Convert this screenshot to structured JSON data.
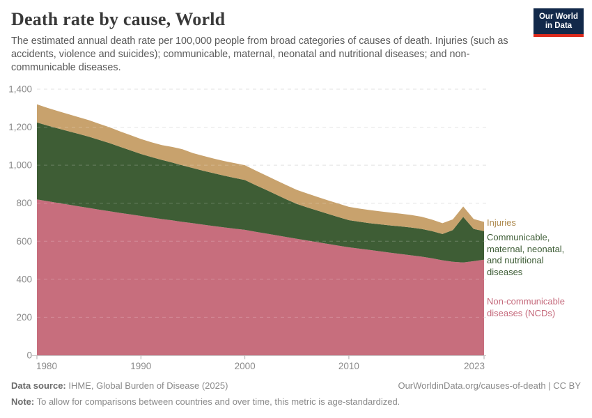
{
  "header": {
    "title": "Death rate by cause, World",
    "subtitle": "The estimated annual death rate per 100,000 people from broad categories of causes of death. Injuries (such as accidents, violence and suicides); communicable, maternal, neonatal and nutritional diseases; and non-communicable diseases."
  },
  "logo": {
    "line1": "Our World",
    "line2": "in Data"
  },
  "chart_data": {
    "type": "area",
    "stacked": true,
    "title": "Death rate by cause, World",
    "xlabel": "",
    "ylabel": "Estimated annual death rate per 100,000 people",
    "ylim": [
      0,
      1400
    ],
    "grid": "dashed",
    "legend_position": "right",
    "x": [
      1980,
      1981,
      1982,
      1983,
      1984,
      1985,
      1986,
      1987,
      1988,
      1989,
      1990,
      1991,
      1992,
      1993,
      1994,
      1995,
      1996,
      1997,
      1998,
      1999,
      2000,
      2001,
      2002,
      2003,
      2004,
      2005,
      2006,
      2007,
      2008,
      2009,
      2010,
      2011,
      2012,
      2013,
      2014,
      2015,
      2016,
      2017,
      2018,
      2019,
      2020,
      2021,
      2022,
      2023
    ],
    "series": [
      {
        "id": "ncds",
        "name": "Non-communicable diseases (NCDs)",
        "color": "#c76e7d",
        "values": [
          820,
          811,
          802,
          793,
          784,
          775,
          766,
          758,
          749,
          741,
          733,
          725,
          717,
          710,
          702,
          695,
          687,
          680,
          673,
          666,
          660,
          650,
          641,
          632,
          622,
          613,
          604,
          595,
          586,
          577,
          568,
          561,
          554,
          547,
          540,
          533,
          526,
          519,
          510,
          500,
          492,
          488,
          495,
          503
        ]
      },
      {
        "id": "cmnn",
        "name": "Communicable, maternal, neonatal, and nutritional diseases",
        "color": "#3e5d35",
        "values": [
          405,
          398,
          392,
          386,
          381,
          375,
          367,
          358,
          348,
          337,
          326,
          318,
          311,
          304,
          297,
          290,
          284,
          278,
          272,
          267,
          262,
          246,
          230,
          214,
          198,
          183,
          174,
          166,
          158,
          150,
          143,
          142,
          141,
          142,
          143,
          145,
          146,
          146,
          143,
          138,
          167,
          240,
          170,
          150
        ]
      },
      {
        "id": "injuries",
        "name": "Injuries",
        "color": "#c8a26d",
        "values": [
          95,
          93,
          91,
          90,
          88,
          87,
          85,
          83,
          81,
          80,
          79,
          78,
          78,
          82,
          85,
          79,
          78,
          77,
          77,
          78,
          78,
          77,
          76,
          75,
          75,
          74,
          73,
          72,
          71,
          71,
          70,
          69,
          69,
          68,
          68,
          67,
          66,
          64,
          61,
          57,
          56,
          55,
          52,
          49
        ]
      }
    ],
    "y_ticks": [
      {
        "value": 0,
        "label": "0"
      },
      {
        "value": 200,
        "label": "200"
      },
      {
        "value": 400,
        "label": "400"
      },
      {
        "value": 600,
        "label": "600"
      },
      {
        "value": 800,
        "label": "800"
      },
      {
        "value": 1000,
        "label": "1,000"
      },
      {
        "value": 1200,
        "label": "1,200"
      },
      {
        "value": 1400,
        "label": "1,400"
      }
    ],
    "x_ticks": [
      {
        "value": 1980,
        "label": "1980"
      },
      {
        "value": 1990,
        "label": "1990"
      },
      {
        "value": 2000,
        "label": "2000"
      },
      {
        "value": 2010,
        "label": "2010"
      },
      {
        "value": 2023,
        "label": "2023"
      }
    ],
    "legend": [
      {
        "id": "injuries",
        "label": "Injuries",
        "color": "#ae8a4f"
      },
      {
        "id": "cmnn",
        "label": "Communicable, maternal, neonatal, and nutritional diseases",
        "color": "#3d5c35"
      },
      {
        "id": "ncds",
        "label": "Non-communicable diseases (NCDs)",
        "color": "#c4687a"
      }
    ]
  },
  "footer": {
    "source_label": "Data source:",
    "source": "IHME, Global Burden of Disease (2025)",
    "link": "OurWorldinData.org/causes-of-death | CC BY",
    "note_label": "Note:",
    "note": "To allow for comparisons between countries and over time, this metric is age-standardized."
  }
}
